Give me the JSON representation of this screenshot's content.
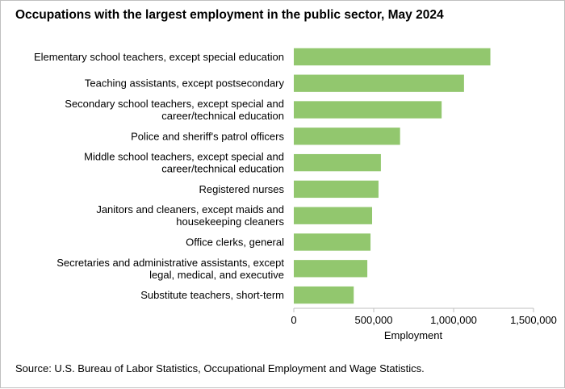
{
  "title": "Occupations with the largest employment in the public sector, May 2024",
  "source": "Source: U.S. Bureau of Labor Statistics, Occupational Employment and Wage Statistics.",
  "chart_data": {
    "type": "bar",
    "orientation": "horizontal",
    "title": "Occupations with the largest employment in the public sector, May 2024",
    "xlabel": "Employment",
    "ylabel": "",
    "xlim": [
      0,
      1500000
    ],
    "ticks": [
      0,
      500000,
      1000000,
      1500000
    ],
    "tick_labels": [
      "0",
      "500,000",
      "1,000,000",
      "1,500,000"
    ],
    "grid": false,
    "legend": "none",
    "bar_color": "#92c76e",
    "categories": [
      [
        "Elementary school teachers, except special education"
      ],
      [
        "Teaching assistants, except postsecondary"
      ],
      [
        "Secondary school teachers, except special and",
        "career/technical education"
      ],
      [
        "Police and sheriff's patrol officers"
      ],
      [
        "Middle school teachers, except special and",
        "career/technical education"
      ],
      [
        "Registered nurses"
      ],
      [
        "Janitors and cleaners, except maids and",
        "housekeeping cleaners"
      ],
      [
        "Office clerks, general"
      ],
      [
        "Secretaries and administrative assistants, except",
        "legal, medical, and executive"
      ],
      [
        "Substitute teachers, short-term"
      ]
    ],
    "values": [
      1230000,
      1065000,
      925000,
      665000,
      545000,
      530000,
      490000,
      480000,
      460000,
      375000
    ]
  }
}
